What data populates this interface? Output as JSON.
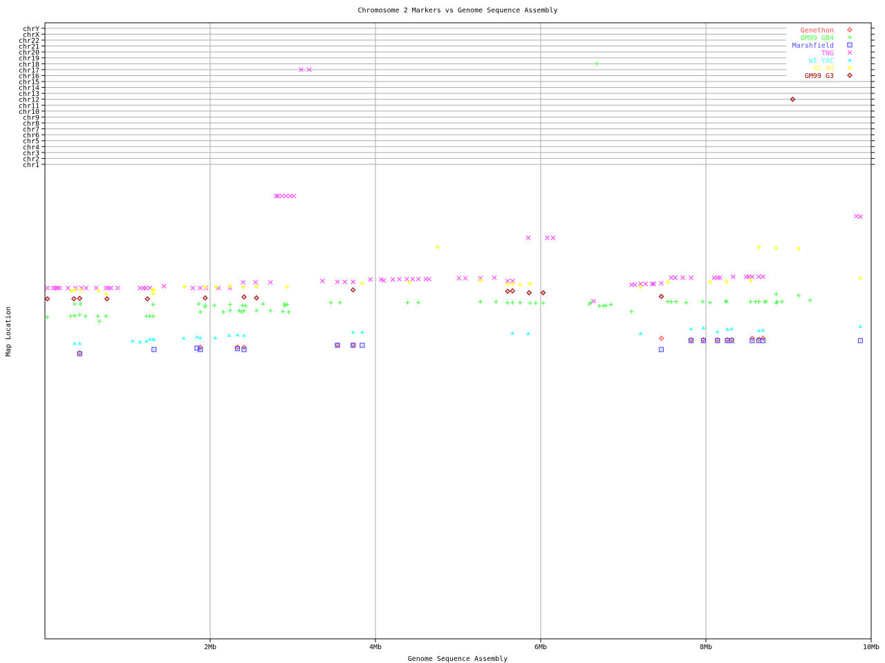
{
  "chart_data": {
    "type": "scatter",
    "title": "Chromosome 2 Markers vs Genome Sequence Assembly",
    "xlabel": "Genome Sequence Assembly",
    "ylabel": "Map Location",
    "xlim": [
      0,
      10
    ],
    "x_ticks": [
      {
        "v": 2,
        "label": "2Mb"
      },
      {
        "v": 4,
        "label": "4Mb"
      },
      {
        "v": 6,
        "label": "6Mb"
      },
      {
        "v": 8,
        "label": "8Mb"
      },
      {
        "v": 10,
        "label": "10Mb"
      }
    ],
    "chromosome_labels": [
      "chr1",
      "chr2",
      "chr3",
      "chr4",
      "chr5",
      "chr6",
      "chr7",
      "chr8",
      "chr9",
      "chr10",
      "chr11",
      "chr12",
      "chr13",
      "chr14",
      "chr15",
      "chr16",
      "chr17",
      "chr18",
      "chr19",
      "chr20",
      "chr21",
      "chr22",
      "chrX",
      "chrY"
    ],
    "grid": true,
    "legend_position": "top-right",
    "series": [
      {
        "name": "Genethon",
        "color": "#ff4d4d",
        "marker": "diamond",
        "points": [
          [
            0.42,
            60.9
          ],
          [
            1.88,
            62.1
          ],
          [
            2.33,
            62.1
          ],
          [
            2.41,
            62.1
          ],
          [
            3.54,
            62.6
          ],
          [
            3.73,
            62.6
          ],
          [
            7.46,
            64.0
          ],
          [
            7.82,
            63.7
          ],
          [
            7.97,
            63.7
          ],
          [
            8.14,
            63.7
          ],
          [
            8.26,
            63.7
          ],
          [
            8.31,
            63.7
          ],
          [
            8.56,
            64.0
          ],
          [
            8.64,
            63.8
          ],
          [
            8.69,
            64.0
          ]
        ],
        "chr_points": []
      },
      {
        "name": "GM99 GB4",
        "color": "#4dff4d",
        "marker": "plus",
        "points": [
          [
            0.36,
            71.3
          ],
          [
            0.43,
            71.3
          ],
          [
            1.31,
            71.2
          ],
          [
            1.86,
            71.3
          ],
          [
            1.94,
            71.0
          ],
          [
            1.94,
            70.7
          ],
          [
            1.88,
            69.6
          ],
          [
            2.05,
            71.0
          ],
          [
            2.24,
            71.2
          ],
          [
            2.39,
            71.0
          ],
          [
            2.43,
            70.9
          ],
          [
            2.64,
            71.3
          ],
          [
            2.9,
            71.3
          ],
          [
            2.93,
            71.2
          ],
          [
            2.9,
            70.9
          ],
          [
            0.03,
            68.5
          ],
          [
            0.31,
            68.7
          ],
          [
            0.36,
            68.8
          ],
          [
            0.42,
            69.0
          ],
          [
            0.49,
            68.7
          ],
          [
            0.64,
            68.7
          ],
          [
            0.66,
            67.6
          ],
          [
            0.74,
            68.7
          ],
          [
            1.23,
            68.7
          ],
          [
            1.27,
            68.7
          ],
          [
            1.31,
            68.7
          ],
          [
            2.16,
            69.6
          ],
          [
            2.24,
            69.9
          ],
          [
            2.35,
            69.9
          ],
          [
            2.38,
            69.6
          ],
          [
            2.41,
            69.9
          ],
          [
            2.56,
            69.9
          ],
          [
            2.73,
            69.9
          ],
          [
            2.88,
            69.7
          ],
          [
            2.95,
            69.6
          ],
          [
            3.46,
            71.6
          ],
          [
            3.57,
            71.6
          ],
          [
            4.39,
            71.6
          ],
          [
            4.52,
            71.6
          ],
          [
            5.27,
            71.8
          ],
          [
            5.46,
            71.8
          ],
          [
            5.6,
            71.6
          ],
          [
            5.66,
            71.6
          ],
          [
            5.75,
            71.6
          ],
          [
            5.87,
            71.5
          ],
          [
            5.94,
            71.5
          ],
          [
            6.03,
            71.5
          ],
          [
            6.59,
            71.3
          ],
          [
            6.61,
            71.6
          ],
          [
            6.71,
            70.9
          ],
          [
            6.76,
            70.9
          ],
          [
            6.79,
            71.0
          ],
          [
            6.85,
            71.2
          ],
          [
            7.1,
            69.7
          ],
          [
            7.54,
            71.8
          ],
          [
            7.58,
            71.8
          ],
          [
            7.64,
            71.8
          ],
          [
            7.76,
            71.6
          ],
          [
            7.96,
            71.8
          ],
          [
            8.05,
            71.6
          ],
          [
            8.24,
            71.9
          ],
          [
            8.25,
            71.8
          ],
          [
            8.54,
            71.8
          ],
          [
            8.6,
            71.8
          ],
          [
            8.64,
            71.8
          ],
          [
            8.71,
            71.8
          ],
          [
            8.73,
            71.8
          ],
          [
            8.85,
            73.4
          ],
          [
            8.86,
            71.8
          ],
          [
            8.85,
            71.5
          ],
          [
            8.92,
            71.8
          ],
          [
            9.12,
            73.1
          ],
          [
            9.26,
            72.1
          ]
        ],
        "chr_points": [
          [
            6.68,
            "chr18"
          ]
        ]
      },
      {
        "name": "Marshfield",
        "color": "#4d4dff",
        "marker": "square",
        "points": [
          [
            0.42,
            60.7
          ],
          [
            1.32,
            61.6
          ],
          [
            1.84,
            61.9
          ],
          [
            1.88,
            61.6
          ],
          [
            2.33,
            61.8
          ],
          [
            2.41,
            61.6
          ],
          [
            3.54,
            62.5
          ],
          [
            3.73,
            62.5
          ],
          [
            3.84,
            62.5
          ],
          [
            7.46,
            61.6
          ],
          [
            7.82,
            63.5
          ],
          [
            7.97,
            63.5
          ],
          [
            8.14,
            63.5
          ],
          [
            8.26,
            63.5
          ],
          [
            8.31,
            63.5
          ],
          [
            8.56,
            63.5
          ],
          [
            8.64,
            63.5
          ],
          [
            8.69,
            63.5
          ],
          [
            9.87,
            63.5
          ]
        ],
        "chr_points": []
      },
      {
        "name": "TNG",
        "color": "#ff4dff",
        "marker": "x",
        "points": [
          [
            0.03,
            74.7
          ],
          [
            0.1,
            74.7
          ],
          [
            0.13,
            74.7
          ],
          [
            0.15,
            74.7
          ],
          [
            0.18,
            74.7
          ],
          [
            0.28,
            74.7
          ],
          [
            0.37,
            74.7
          ],
          [
            0.44,
            74.7
          ],
          [
            0.5,
            74.7
          ],
          [
            0.62,
            74.7
          ],
          [
            0.74,
            74.7
          ],
          [
            0.77,
            74.7
          ],
          [
            0.8,
            74.7
          ],
          [
            0.88,
            74.7
          ],
          [
            1.15,
            74.7
          ],
          [
            1.19,
            74.7
          ],
          [
            1.22,
            74.7
          ],
          [
            1.27,
            74.7
          ],
          [
            1.44,
            75.1
          ],
          [
            1.79,
            74.7
          ],
          [
            1.88,
            74.7
          ],
          [
            1.95,
            74.7
          ],
          [
            2.1,
            74.7
          ],
          [
            2.24,
            74.7
          ],
          [
            2.4,
            75.9
          ],
          [
            2.55,
            75.9
          ],
          [
            2.73,
            75.9
          ],
          [
            2.8,
            94.3
          ],
          [
            2.82,
            94.3
          ],
          [
            2.87,
            94.3
          ],
          [
            2.92,
            94.3
          ],
          [
            2.97,
            94.3
          ],
          [
            3.01,
            94.3
          ],
          [
            3.36,
            76.2
          ],
          [
            3.54,
            76.0
          ],
          [
            3.63,
            76.0
          ],
          [
            3.73,
            76.0
          ],
          [
            3.94,
            76.5
          ],
          [
            4.07,
            76.5
          ],
          [
            4.1,
            76.3
          ],
          [
            4.21,
            76.5
          ],
          [
            4.29,
            76.6
          ],
          [
            4.38,
            76.6
          ],
          [
            4.45,
            76.6
          ],
          [
            4.52,
            76.6
          ],
          [
            4.61,
            76.6
          ],
          [
            4.65,
            76.6
          ],
          [
            5.01,
            76.8
          ],
          [
            5.09,
            76.8
          ],
          [
            5.27,
            76.8
          ],
          [
            5.44,
            76.9
          ],
          [
            5.6,
            76.2
          ],
          [
            5.66,
            76.2
          ],
          [
            5.85,
            85.4
          ],
          [
            6.08,
            85.4
          ],
          [
            6.15,
            85.4
          ],
          [
            6.64,
            71.9
          ],
          [
            7.1,
            75.4
          ],
          [
            7.14,
            75.4
          ],
          [
            7.21,
            75.6
          ],
          [
            7.27,
            75.6
          ],
          [
            7.35,
            75.6
          ],
          [
            7.37,
            75.6
          ],
          [
            7.46,
            75.7
          ],
          [
            7.58,
            76.9
          ],
          [
            7.63,
            76.9
          ],
          [
            7.72,
            76.9
          ],
          [
            7.82,
            76.9
          ],
          [
            8.1,
            76.9
          ],
          [
            8.14,
            76.9
          ],
          [
            8.17,
            76.9
          ],
          [
            8.33,
            77.1
          ],
          [
            8.49,
            77.1
          ],
          [
            8.52,
            77.1
          ],
          [
            8.56,
            77.1
          ],
          [
            8.64,
            77.1
          ],
          [
            8.69,
            77.1
          ],
          [
            9.82,
            90.0
          ],
          [
            9.87,
            89.9
          ]
        ],
        "chr_points": [
          [
            3.1,
            "chr17"
          ],
          [
            3.2,
            "chr17"
          ]
        ]
      },
      {
        "name": "WI YAC",
        "color": "#4dffff",
        "marker": "triangle",
        "points": [
          [
            0.36,
            62.9
          ],
          [
            0.42,
            62.9
          ],
          [
            1.06,
            63.4
          ],
          [
            1.15,
            63.2
          ],
          [
            1.23,
            63.4
          ],
          [
            1.27,
            63.8
          ],
          [
            1.31,
            63.8
          ],
          [
            1.32,
            63.7
          ],
          [
            1.68,
            64.0
          ],
          [
            1.84,
            64.3
          ],
          [
            1.88,
            64.1
          ],
          [
            2.06,
            64.1
          ],
          [
            2.23,
            64.6
          ],
          [
            2.33,
            64.7
          ],
          [
            2.41,
            64.6
          ],
          [
            3.73,
            65.3
          ],
          [
            3.84,
            65.3
          ],
          [
            5.66,
            65.1
          ],
          [
            5.85,
            65.0
          ],
          [
            7.21,
            65.0
          ],
          [
            7.82,
            66.0
          ],
          [
            7.97,
            66.2
          ],
          [
            8.14,
            65.4
          ],
          [
            8.26,
            65.9
          ],
          [
            8.31,
            66.0
          ],
          [
            8.64,
            65.6
          ],
          [
            8.69,
            65.7
          ],
          [
            9.87,
            66.5
          ]
        ],
        "chr_points": []
      },
      {
        "name": "WI RH",
        "color": "#ffff4d",
        "marker": "star",
        "points": [
          [
            0.32,
            74.1
          ],
          [
            0.36,
            74.3
          ],
          [
            0.43,
            74.3
          ],
          [
            0.65,
            74.1
          ],
          [
            0.74,
            73.4
          ],
          [
            1.3,
            74.3
          ],
          [
            1.31,
            73.5
          ],
          [
            1.32,
            74.4
          ],
          [
            1.69,
            75.0
          ],
          [
            1.94,
            74.9
          ],
          [
            2.07,
            74.9
          ],
          [
            2.24,
            75.1
          ],
          [
            2.4,
            74.9
          ],
          [
            2.56,
            75.0
          ],
          [
            2.93,
            74.9
          ],
          [
            3.84,
            75.7
          ],
          [
            4.41,
            75.9
          ],
          [
            4.75,
            83.4
          ],
          [
            5.27,
            76.3
          ],
          [
            5.6,
            75.6
          ],
          [
            5.66,
            75.6
          ],
          [
            5.75,
            75.4
          ],
          [
            5.87,
            75.6
          ],
          [
            7.21,
            74.9
          ],
          [
            7.54,
            76.0
          ],
          [
            8.05,
            76.0
          ],
          [
            8.25,
            76.0
          ],
          [
            8.54,
            76.3
          ],
          [
            8.64,
            83.4
          ],
          [
            8.85,
            83.2
          ],
          [
            9.12,
            83.1
          ],
          [
            9.87,
            76.8
          ]
        ],
        "chr_points": []
      },
      {
        "name": "GM99 G3",
        "color": "#a00000",
        "marker": "diamond",
        "points": [
          [
            0.03,
            72.4
          ],
          [
            0.35,
            72.4
          ],
          [
            0.42,
            72.5
          ],
          [
            0.75,
            72.4
          ],
          [
            1.24,
            72.4
          ],
          [
            1.94,
            72.6
          ],
          [
            2.56,
            72.6
          ],
          [
            2.41,
            72.8
          ],
          [
            3.73,
            74.3
          ],
          [
            5.6,
            74.0
          ],
          [
            5.66,
            74.1
          ],
          [
            5.86,
            73.7
          ],
          [
            6.03,
            73.7
          ],
          [
            7.46,
            72.9
          ]
        ],
        "chr_points": [
          [
            9.05,
            "chr12"
          ]
        ]
      }
    ]
  }
}
